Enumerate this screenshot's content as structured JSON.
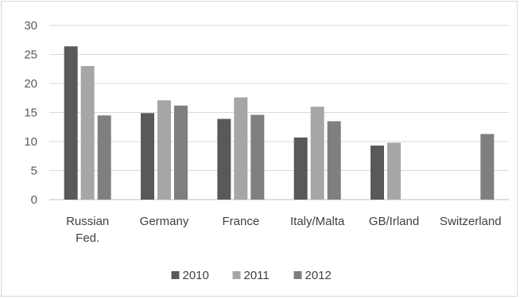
{
  "chart_data": {
    "type": "bar",
    "title": "",
    "xlabel": "",
    "ylabel": "",
    "ylim": [
      0,
      30
    ],
    "yticks": [
      0,
      5,
      10,
      15,
      20,
      25,
      30
    ],
    "grid": true,
    "legend_position": "bottom",
    "categories": [
      "Russian Fed.",
      "Germany",
      "France",
      "Italy/Malta",
      "GB/Irland",
      "Switzerland"
    ],
    "series": [
      {
        "name": "2010",
        "color": "#595959",
        "values": [
          26.4,
          14.9,
          13.9,
          10.7,
          9.3,
          null
        ]
      },
      {
        "name": "2011",
        "color": "#a6a6a6",
        "values": [
          23.0,
          17.1,
          17.6,
          16.0,
          9.8,
          null
        ]
      },
      {
        "name": "2012",
        "color": "#7f7f7f",
        "values": [
          14.5,
          16.2,
          14.6,
          13.5,
          null,
          11.3
        ]
      }
    ]
  }
}
